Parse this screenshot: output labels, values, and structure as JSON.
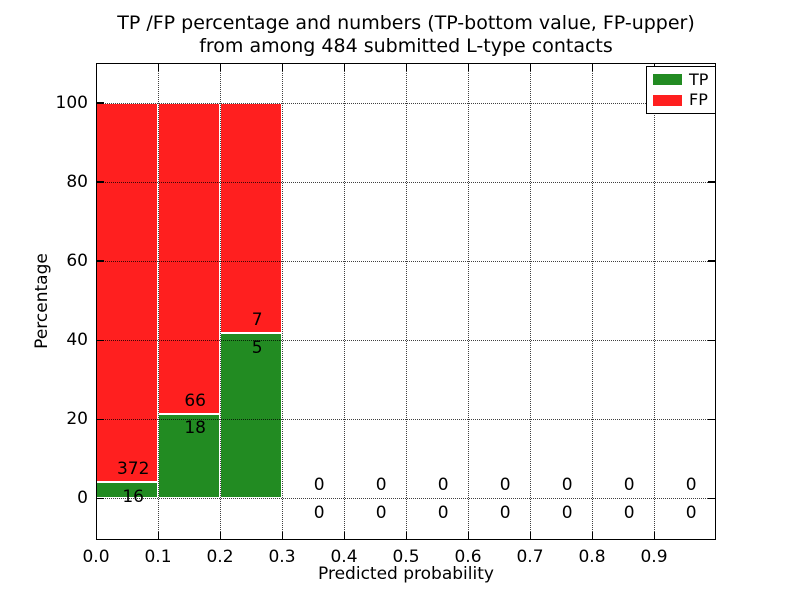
{
  "chart_data": {
    "type": "bar",
    "stacked": true,
    "normalized": "percent",
    "title_line1": "TP /FP percentage and numbers (TP-bottom value, FP-upper)",
    "title_line2": "from among 484 submitted L-type contacts",
    "xlabel": "Predicted probability",
    "ylabel": "Percentage",
    "xlim": [
      0.0,
      1.0
    ],
    "ylim": [
      -10.5,
      110
    ],
    "xtick_labels": [
      "0.0",
      "0.1",
      "0.2",
      "0.3",
      "0.4",
      "0.5",
      "0.6",
      "0.7",
      "0.8",
      "0.9"
    ],
    "ytick_values": [
      0,
      20,
      40,
      60,
      80,
      100
    ],
    "grid": "dotted",
    "grid_above_bars": true,
    "legend_position": "upper right",
    "legend": [
      {
        "label": "TP",
        "color": "#228b22"
      },
      {
        "label": "FP",
        "color": "#ff1f1f"
      }
    ],
    "bins": [
      {
        "x0": 0.0,
        "x1": 0.1,
        "tp": 16,
        "fp": 372
      },
      {
        "x0": 0.1,
        "x1": 0.2,
        "tp": 18,
        "fp": 66
      },
      {
        "x0": 0.2,
        "x1": 0.3,
        "tp": 5,
        "fp": 7
      },
      {
        "x0": 0.3,
        "x1": 0.4,
        "tp": 0,
        "fp": 0
      },
      {
        "x0": 0.4,
        "x1": 0.5,
        "tp": 0,
        "fp": 0
      },
      {
        "x0": 0.5,
        "x1": 0.6,
        "tp": 0,
        "fp": 0
      },
      {
        "x0": 0.6,
        "x1": 0.7,
        "tp": 0,
        "fp": 0
      },
      {
        "x0": 0.7,
        "x1": 0.8,
        "tp": 0,
        "fp": 0
      },
      {
        "x0": 0.8,
        "x1": 0.9,
        "tp": 0,
        "fp": 0
      },
      {
        "x0": 0.9,
        "x1": 1.0,
        "tp": 0,
        "fp": 0
      }
    ]
  }
}
